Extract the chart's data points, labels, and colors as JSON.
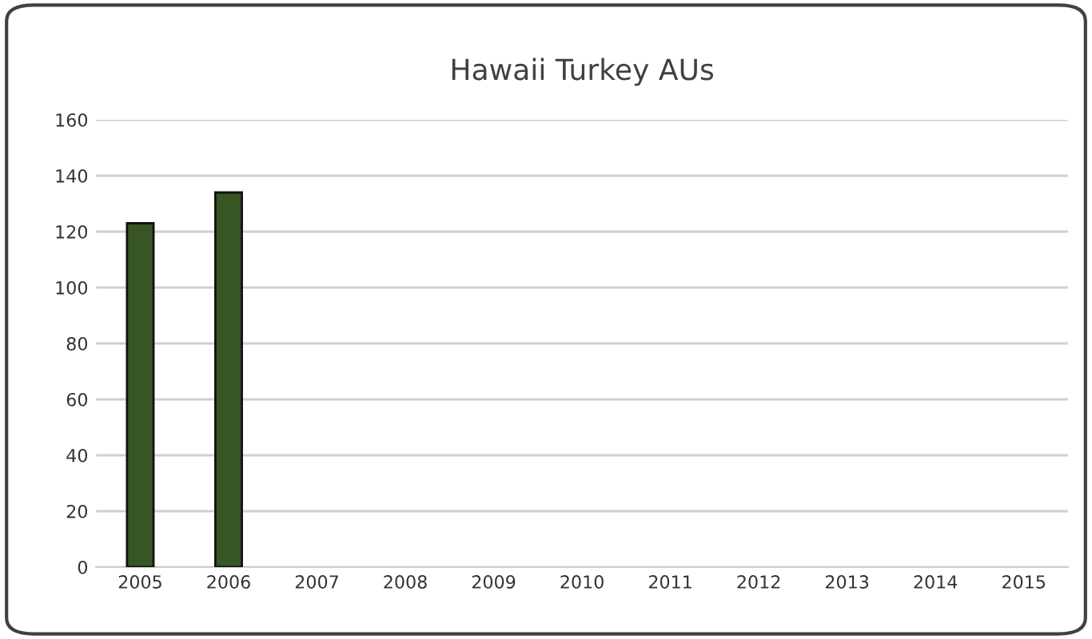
{
  "chart_data": {
    "type": "bar",
    "title": "Hawaii Turkey AUs",
    "categories": [
      "2005",
      "2006",
      "2007",
      "2008",
      "2009",
      "2010",
      "2011",
      "2012",
      "2013",
      "2014",
      "2015"
    ],
    "values": [
      123,
      134,
      null,
      null,
      null,
      null,
      null,
      null,
      null,
      null,
      null
    ],
    "color": "#375623",
    "ylim": [
      0,
      160
    ],
    "yticks": [
      0,
      20,
      40,
      60,
      80,
      100,
      120,
      140,
      160
    ],
    "grid": "y"
  }
}
